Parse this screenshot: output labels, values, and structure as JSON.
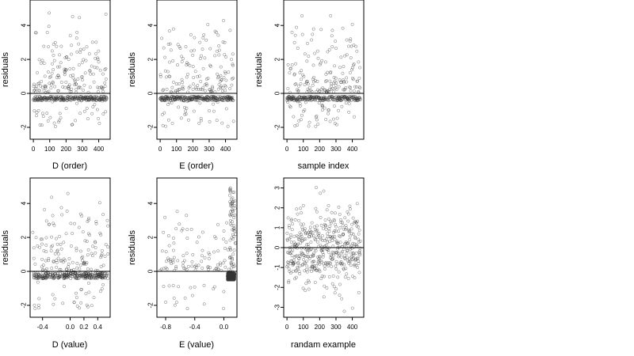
{
  "chart_data": [
    {
      "type": "scatter",
      "xlabel": "D (order)",
      "ylabel": "residuals",
      "xlim": [
        -20,
        470
      ],
      "ylim": [
        -2.7,
        5.5
      ],
      "xticks": [
        0,
        100,
        200,
        300,
        400
      ],
      "xtick_labels": [
        "0",
        "100",
        "200",
        "300",
        "400"
      ],
      "yticks": [
        -2,
        0,
        2,
        4
      ],
      "ytick_labels": [
        "-2",
        "0",
        "2",
        "4"
      ],
      "hline": 0,
      "pattern": "order",
      "seed": 11
    },
    {
      "type": "scatter",
      "xlabel": "E (order)",
      "ylabel": "residuals",
      "xlim": [
        -20,
        470
      ],
      "ylim": [
        -2.7,
        5.5
      ],
      "xticks": [
        0,
        100,
        200,
        300,
        400
      ],
      "xtick_labels": [
        "0",
        "100",
        "200",
        "300",
        "400"
      ],
      "yticks": [
        -2,
        0,
        2,
        4
      ],
      "ytick_labels": [
        "-2",
        "0",
        "2",
        "4"
      ],
      "hline": 0,
      "pattern": "order",
      "seed": 23
    },
    {
      "type": "scatter",
      "xlabel": "sample index",
      "ylabel": "residuals",
      "xlim": [
        -20,
        470
      ],
      "ylim": [
        -2.7,
        5.5
      ],
      "xticks": [
        0,
        100,
        200,
        300,
        400
      ],
      "xtick_labels": [
        "0",
        "100",
        "200",
        "300",
        "400"
      ],
      "yticks": [
        -2,
        0,
        2,
        4
      ],
      "ytick_labels": [
        "-2",
        "0",
        "2",
        "4"
      ],
      "hline": 0,
      "pattern": "order",
      "seed": 37
    },
    {
      "type": "scatter",
      "xlabel": "D (value)",
      "ylabel": "residuals",
      "xlim": [
        -0.58,
        0.58
      ],
      "ylim": [
        -2.7,
        5.5
      ],
      "xticks": [
        -0.4,
        0.0,
        0.2,
        0.4
      ],
      "xtick_labels": [
        "-0.4",
        "0.0",
        "0.2",
        "0.4"
      ],
      "yticks": [
        -2,
        0,
        2,
        4
      ],
      "ytick_labels": [
        "-2",
        "0",
        "2",
        "4"
      ],
      "hline": 0,
      "pattern": "dvalue",
      "seed": 51
    },
    {
      "type": "scatter",
      "xlabel": "E (value)",
      "ylabel": "residuals",
      "xlim": [
        -0.92,
        0.18
      ],
      "ylim": [
        -2.7,
        5.5
      ],
      "xticks": [
        -0.8,
        -0.4,
        0.0
      ],
      "xtick_labels": [
        "-0.8",
        "-0.4",
        "0.0"
      ],
      "yticks": [
        -2,
        0,
        2,
        4
      ],
      "ytick_labels": [
        "-2",
        "0",
        "2",
        "4"
      ],
      "hline": 0,
      "pattern": "evalue",
      "seed": 67
    },
    {
      "type": "scatter",
      "xlabel": "randam example",
      "ylabel": "residuals",
      "xlim": [
        -20,
        470
      ],
      "ylim": [
        -3.5,
        3.5
      ],
      "xticks": [
        0,
        100,
        200,
        300,
        400
      ],
      "xtick_labels": [
        "0",
        "100",
        "200",
        "300",
        "400"
      ],
      "yticks": [
        -3,
        -2,
        -1,
        0,
        1,
        2,
        3
      ],
      "ytick_labels": [
        "-3",
        "-2",
        "-1",
        "0",
        "1",
        "2",
        "3"
      ],
      "hline": 0,
      "pattern": "random",
      "seed": 89
    }
  ]
}
